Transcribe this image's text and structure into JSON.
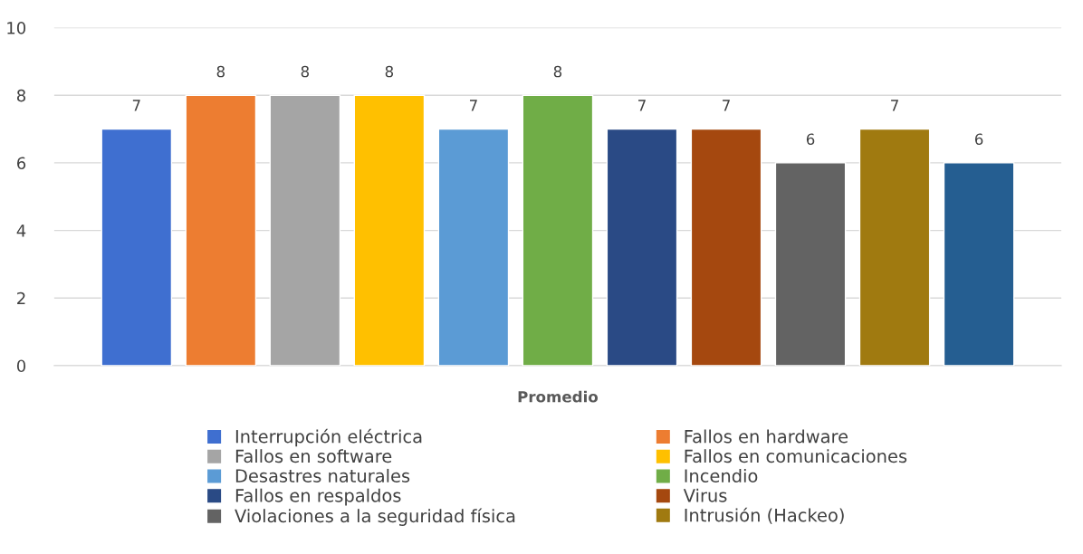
{
  "chart_data": {
    "type": "bar",
    "categories": [
      "Promedio"
    ],
    "series": [
      {
        "name": "Interrupción eléctrica",
        "color": "#3f6fd0",
        "values": [
          7
        ]
      },
      {
        "name": "Fallos en hardware",
        "color": "#ed7d31",
        "values": [
          8
        ]
      },
      {
        "name": "Fallos en software",
        "color": "#a5a5a5",
        "values": [
          8
        ]
      },
      {
        "name": "Fallos en comunicaciones",
        "color": "#ffc000",
        "values": [
          8
        ]
      },
      {
        "name": "Desastres naturales",
        "color": "#5b9bd5",
        "values": [
          7
        ]
      },
      {
        "name": "Incendio",
        "color": "#70ad47",
        "values": [
          8
        ]
      },
      {
        "name": "Fallos en respaldos",
        "color": "#2a4a85",
        "values": [
          7
        ]
      },
      {
        "name": "Virus",
        "color": "#a5480f",
        "values": [
          7
        ]
      },
      {
        "name": "Violaciones a la seguridad física",
        "color": "#636363",
        "values": [
          6
        ]
      },
      {
        "name": "Intrusión (Hackeo)",
        "color": "#a07a10",
        "values": [
          7
        ]
      },
      {
        "color": "#255e91",
        "values": [
          6
        ]
      }
    ],
    "ylim": [
      0,
      10
    ],
    "yticks": [
      0,
      2,
      4,
      6,
      8,
      10
    ],
    "grid": "y",
    "data_labels": true,
    "legend": "bottom"
  }
}
